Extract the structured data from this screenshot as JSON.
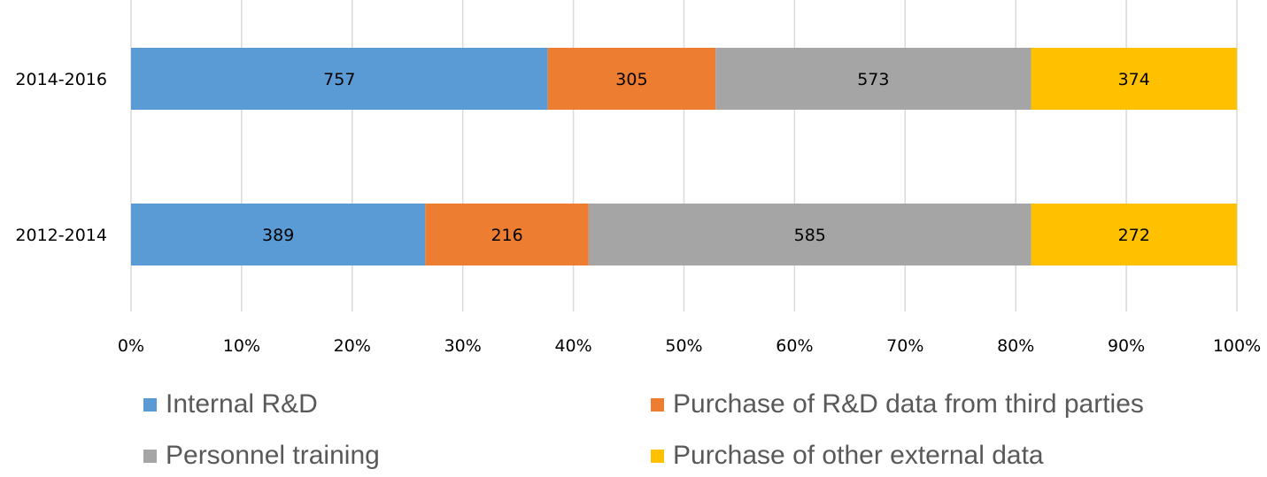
{
  "chart_data": {
    "type": "bar",
    "orientation": "horizontal",
    "stacking": "percent",
    "title": "",
    "xlabel": "",
    "ylabel": "",
    "categories": [
      "2014-2016",
      "2012-2014"
    ],
    "series": [
      {
        "name": "Internal R&D",
        "values": [
          757,
          389
        ],
        "color": "#5b9bd5"
      },
      {
        "name": "Purchase of R&D data from third parties",
        "values": [
          305,
          216
        ],
        "color": "#ed7d31"
      },
      {
        "name": "Personnel training",
        "values": [
          573,
          585
        ],
        "color": "#a5a5a5"
      },
      {
        "name": "Purchase of other external data",
        "values": [
          374,
          272
        ],
        "color": "#ffc000"
      }
    ],
    "xlim": [
      0,
      100
    ],
    "x_ticks": [
      "0%",
      "10%",
      "20%",
      "30%",
      "40%",
      "50%",
      "60%",
      "70%",
      "80%",
      "90%",
      "100%"
    ],
    "grid": true,
    "legend_position": "bottom",
    "data_labels": true
  }
}
